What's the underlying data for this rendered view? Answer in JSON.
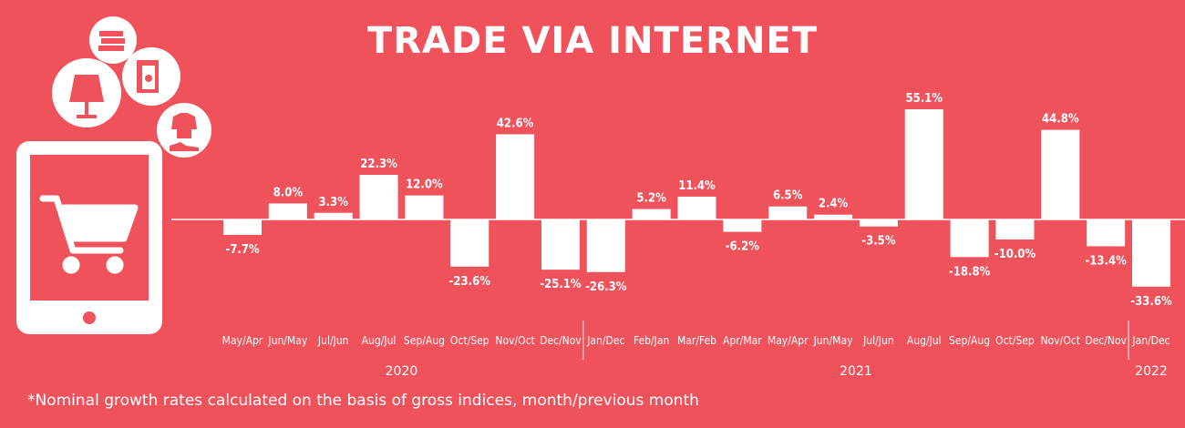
{
  "title": "TRADE VIA INTERNET",
  "footnote": "*Nominal growth rates calculated on the basis of gross indices, month/previous month",
  "colors": {
    "background": "#f0525b",
    "bars": "#ffffff"
  },
  "icons": [
    "books-icon",
    "lamp-icon",
    "fridge-icon",
    "clothes-shoes-icon",
    "tablet-icon",
    "shopping-cart-icon"
  ],
  "chart_data": {
    "type": "bar",
    "categories": [
      "May/Apr",
      "Jun/May",
      "Jul/Jun",
      "Aug/Jul",
      "Sep/Aug",
      "Oct/Sep",
      "Nov/Oct",
      "Dec/Nov",
      "Jan/Dec",
      "Feb/Jan",
      "Mar/Feb",
      "Apr/Mar",
      "May/Apr",
      "Jun/May",
      "Jul/Jun",
      "Aug/Jul",
      "Sep/Aug",
      "Oct/Sep",
      "Nov/Oct",
      "Dec/Nov",
      "Jan/Dec"
    ],
    "values": [
      -7.7,
      8.0,
      3.3,
      22.3,
      12.0,
      -23.6,
      42.6,
      -25.1,
      -26.3,
      5.2,
      11.4,
      -6.2,
      6.5,
      2.4,
      -3.5,
      55.1,
      -18.8,
      -10.0,
      44.8,
      -13.4,
      -33.6
    ],
    "labels": [
      "-7.7%",
      "8.0%",
      "3.3%",
      "22.3%",
      "12.0%",
      "-23.6%",
      "42.6%",
      "-25.1%",
      "-26.3%",
      "5.2%",
      "11.4%",
      "-6.2%",
      "6.5%",
      "2.4%",
      "-3.5%",
      "55.1%",
      "-18.8%",
      "-10.0%",
      "44.8%",
      "-13.4%",
      "-33.6%"
    ],
    "years": [
      {
        "label": "2020",
        "from": 0,
        "to": 7
      },
      {
        "label": "2021",
        "from": 8,
        "to": 19
      },
      {
        "label": "2022",
        "from": 20,
        "to": 20
      }
    ],
    "legend": "none",
    "grid": false
  }
}
